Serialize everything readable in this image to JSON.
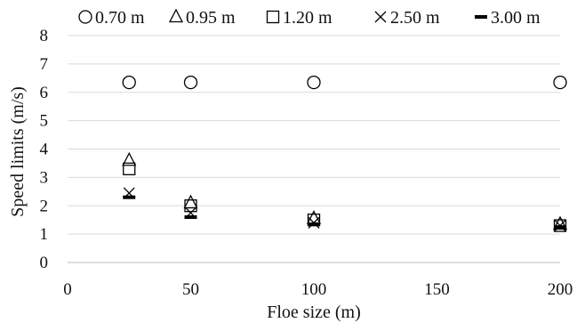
{
  "chart_data": {
    "type": "scatter",
    "title": "",
    "xlabel": "Floe size (m)",
    "ylabel": "Speed limits (m/s)",
    "xlim": [
      0,
      200
    ],
    "ylim": [
      0,
      8
    ],
    "xticks": [
      0,
      50,
      100,
      150,
      200
    ],
    "yticks": [
      0,
      1,
      2,
      3,
      4,
      5,
      6,
      7,
      8
    ],
    "grid": "horizontal",
    "legend_position": "top",
    "series": [
      {
        "name": "0.70 m",
        "marker": "circle",
        "x": [
          25,
          50,
          100,
          200
        ],
        "y": [
          6.35,
          6.35,
          6.35,
          6.35
        ]
      },
      {
        "name": "0.95 m",
        "marker": "triangle",
        "x": [
          25,
          50,
          100,
          200
        ],
        "y": [
          3.6,
          2.1,
          1.55,
          1.35
        ]
      },
      {
        "name": "1.20 m",
        "marker": "square",
        "x": [
          25,
          50,
          100,
          200
        ],
        "y": [
          3.3,
          2.0,
          1.5,
          1.3
        ]
      },
      {
        "name": "2.50 m",
        "marker": "x",
        "x": [
          25,
          50,
          100,
          200
        ],
        "y": [
          2.45,
          1.75,
          1.4,
          1.3
        ]
      },
      {
        "name": "3.00 m",
        "marker": "dash",
        "x": [
          25,
          50,
          100,
          200
        ],
        "y": [
          2.3,
          1.6,
          1.35,
          1.25
        ]
      }
    ]
  }
}
